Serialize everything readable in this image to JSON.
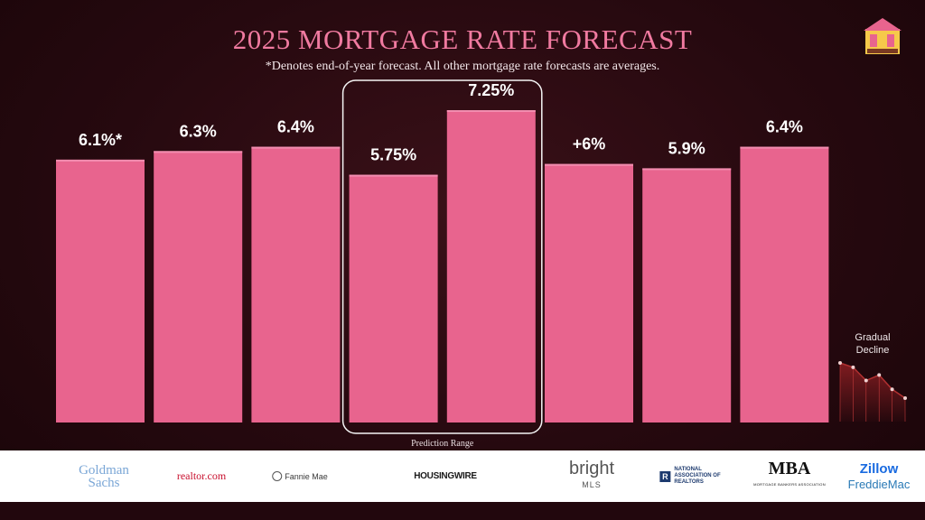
{
  "title": "2025 MORTGAGE RATE FORECAST",
  "subtitle": "*Denotes end-of-year forecast. All other mortgage rate forecasts are averages.",
  "colors": {
    "bar": "#e8648e",
    "bar_top": "#f28db0",
    "title": "#f07aa0",
    "highlight_border": "#f5f5f5",
    "trend": "#b03030"
  },
  "brand_logo": "the-mom-team-house-logo",
  "chart_data": {
    "type": "bar",
    "categories": [
      "Goldman Sachs",
      "realtor.com",
      "Fannie Mae",
      "HOUSINGWIRE (low)",
      "HOUSINGWIRE (high)",
      "bright MLS",
      "National Association of Realtors",
      "MBA"
    ],
    "values": [
      6.1,
      6.3,
      6.4,
      5.75,
      7.25,
      6.0,
      5.9,
      6.4
    ],
    "value_labels": [
      "6.1%*",
      "6.3%",
      "6.4%",
      "5.75%",
      "7.25%",
      "+6%",
      "5.9%",
      "6.4%"
    ],
    "ylim": [
      0,
      7.25
    ],
    "grid": false,
    "highlight": {
      "indices": [
        3,
        4
      ],
      "label": "Prediction Range"
    },
    "trend_inset": {
      "label": [
        "Gradual",
        "Decline"
      ],
      "values": [
        5,
        4.6,
        3.4,
        3.9,
        2.6,
        1.8
      ]
    }
  },
  "sponsors": [
    {
      "name": "goldman-sachs-logo",
      "text": [
        "Goldman",
        "Sachs"
      ]
    },
    {
      "name": "realtor-com-logo",
      "text": "realtor.com"
    },
    {
      "name": "fannie-mae-logo",
      "text": "Fannie Mae"
    },
    {
      "name": "housingwire-logo",
      "text": "HOUSINGWIRE"
    },
    {
      "name": "bright-mls-logo",
      "text": [
        "bright",
        "MLS"
      ]
    },
    {
      "name": "nar-logo",
      "text": [
        "NATIONAL",
        "ASSOCIATION OF",
        "REALTORS"
      ]
    },
    {
      "name": "mba-logo",
      "text": [
        "MBA",
        "MORTGAGE BANKERS ASSOCIATION"
      ]
    },
    {
      "name": "zillow-freddie-logo",
      "text": [
        "Zillow",
        "FreddieMac"
      ]
    }
  ]
}
